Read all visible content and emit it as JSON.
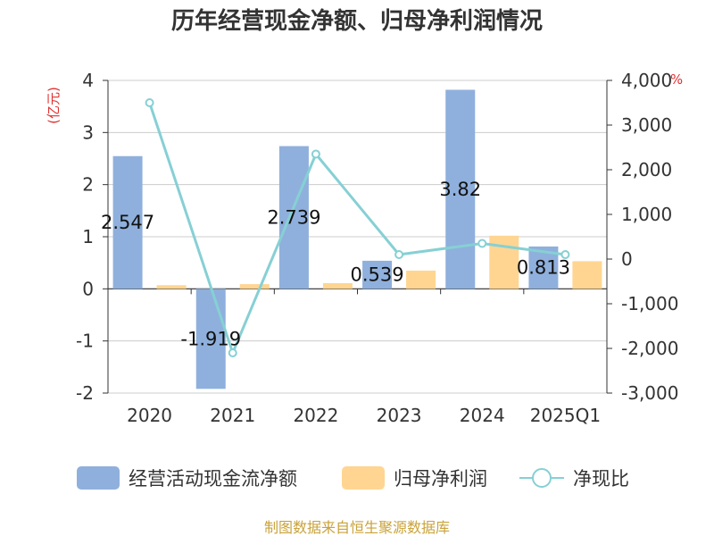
{
  "chart_data": {
    "type": "bar",
    "title": "历年经营现金净额、归母净利润情况",
    "categories": [
      "2020",
      "2021",
      "2022",
      "2023",
      "2024",
      "2025Q1"
    ],
    "series": [
      {
        "name": "经营活动现金流净额",
        "type": "bar",
        "axis": "left",
        "values": [
          2.547,
          -1.919,
          2.739,
          0.539,
          3.82,
          0.813
        ],
        "labels": [
          "2.547",
          "-1.919",
          "2.739",
          "0.539",
          "3.82",
          "0.813"
        ]
      },
      {
        "name": "归母净利润",
        "type": "bar",
        "axis": "left",
        "values": [
          0.07,
          0.09,
          0.11,
          0.35,
          1.02,
          0.53
        ]
      },
      {
        "name": "净现比",
        "type": "line",
        "axis": "right",
        "values": [
          3500,
          -2100,
          2350,
          100,
          350,
          100
        ]
      }
    ],
    "y_left": {
      "unit": "(亿元)",
      "ylim": [
        -2,
        4
      ],
      "ticks": [
        "4",
        "3",
        "2",
        "1",
        "0",
        "-1",
        "-2"
      ]
    },
    "y_right": {
      "unit": "%",
      "ylim": [
        -3000,
        4000
      ],
      "ticks": [
        "4,000",
        "3,000",
        "2,000",
        "1,000",
        "0",
        "-1,000",
        "-2,000",
        "-3,000"
      ]
    },
    "grid": true,
    "legend_position": "bottom",
    "colors": {
      "bar1": "#8fb0dc",
      "bar2": "#ffd591",
      "line": "#86d0d4",
      "unit": "#e03030",
      "source": "#c9a23a"
    }
  },
  "source": "制图数据来自恒生聚源数据库"
}
